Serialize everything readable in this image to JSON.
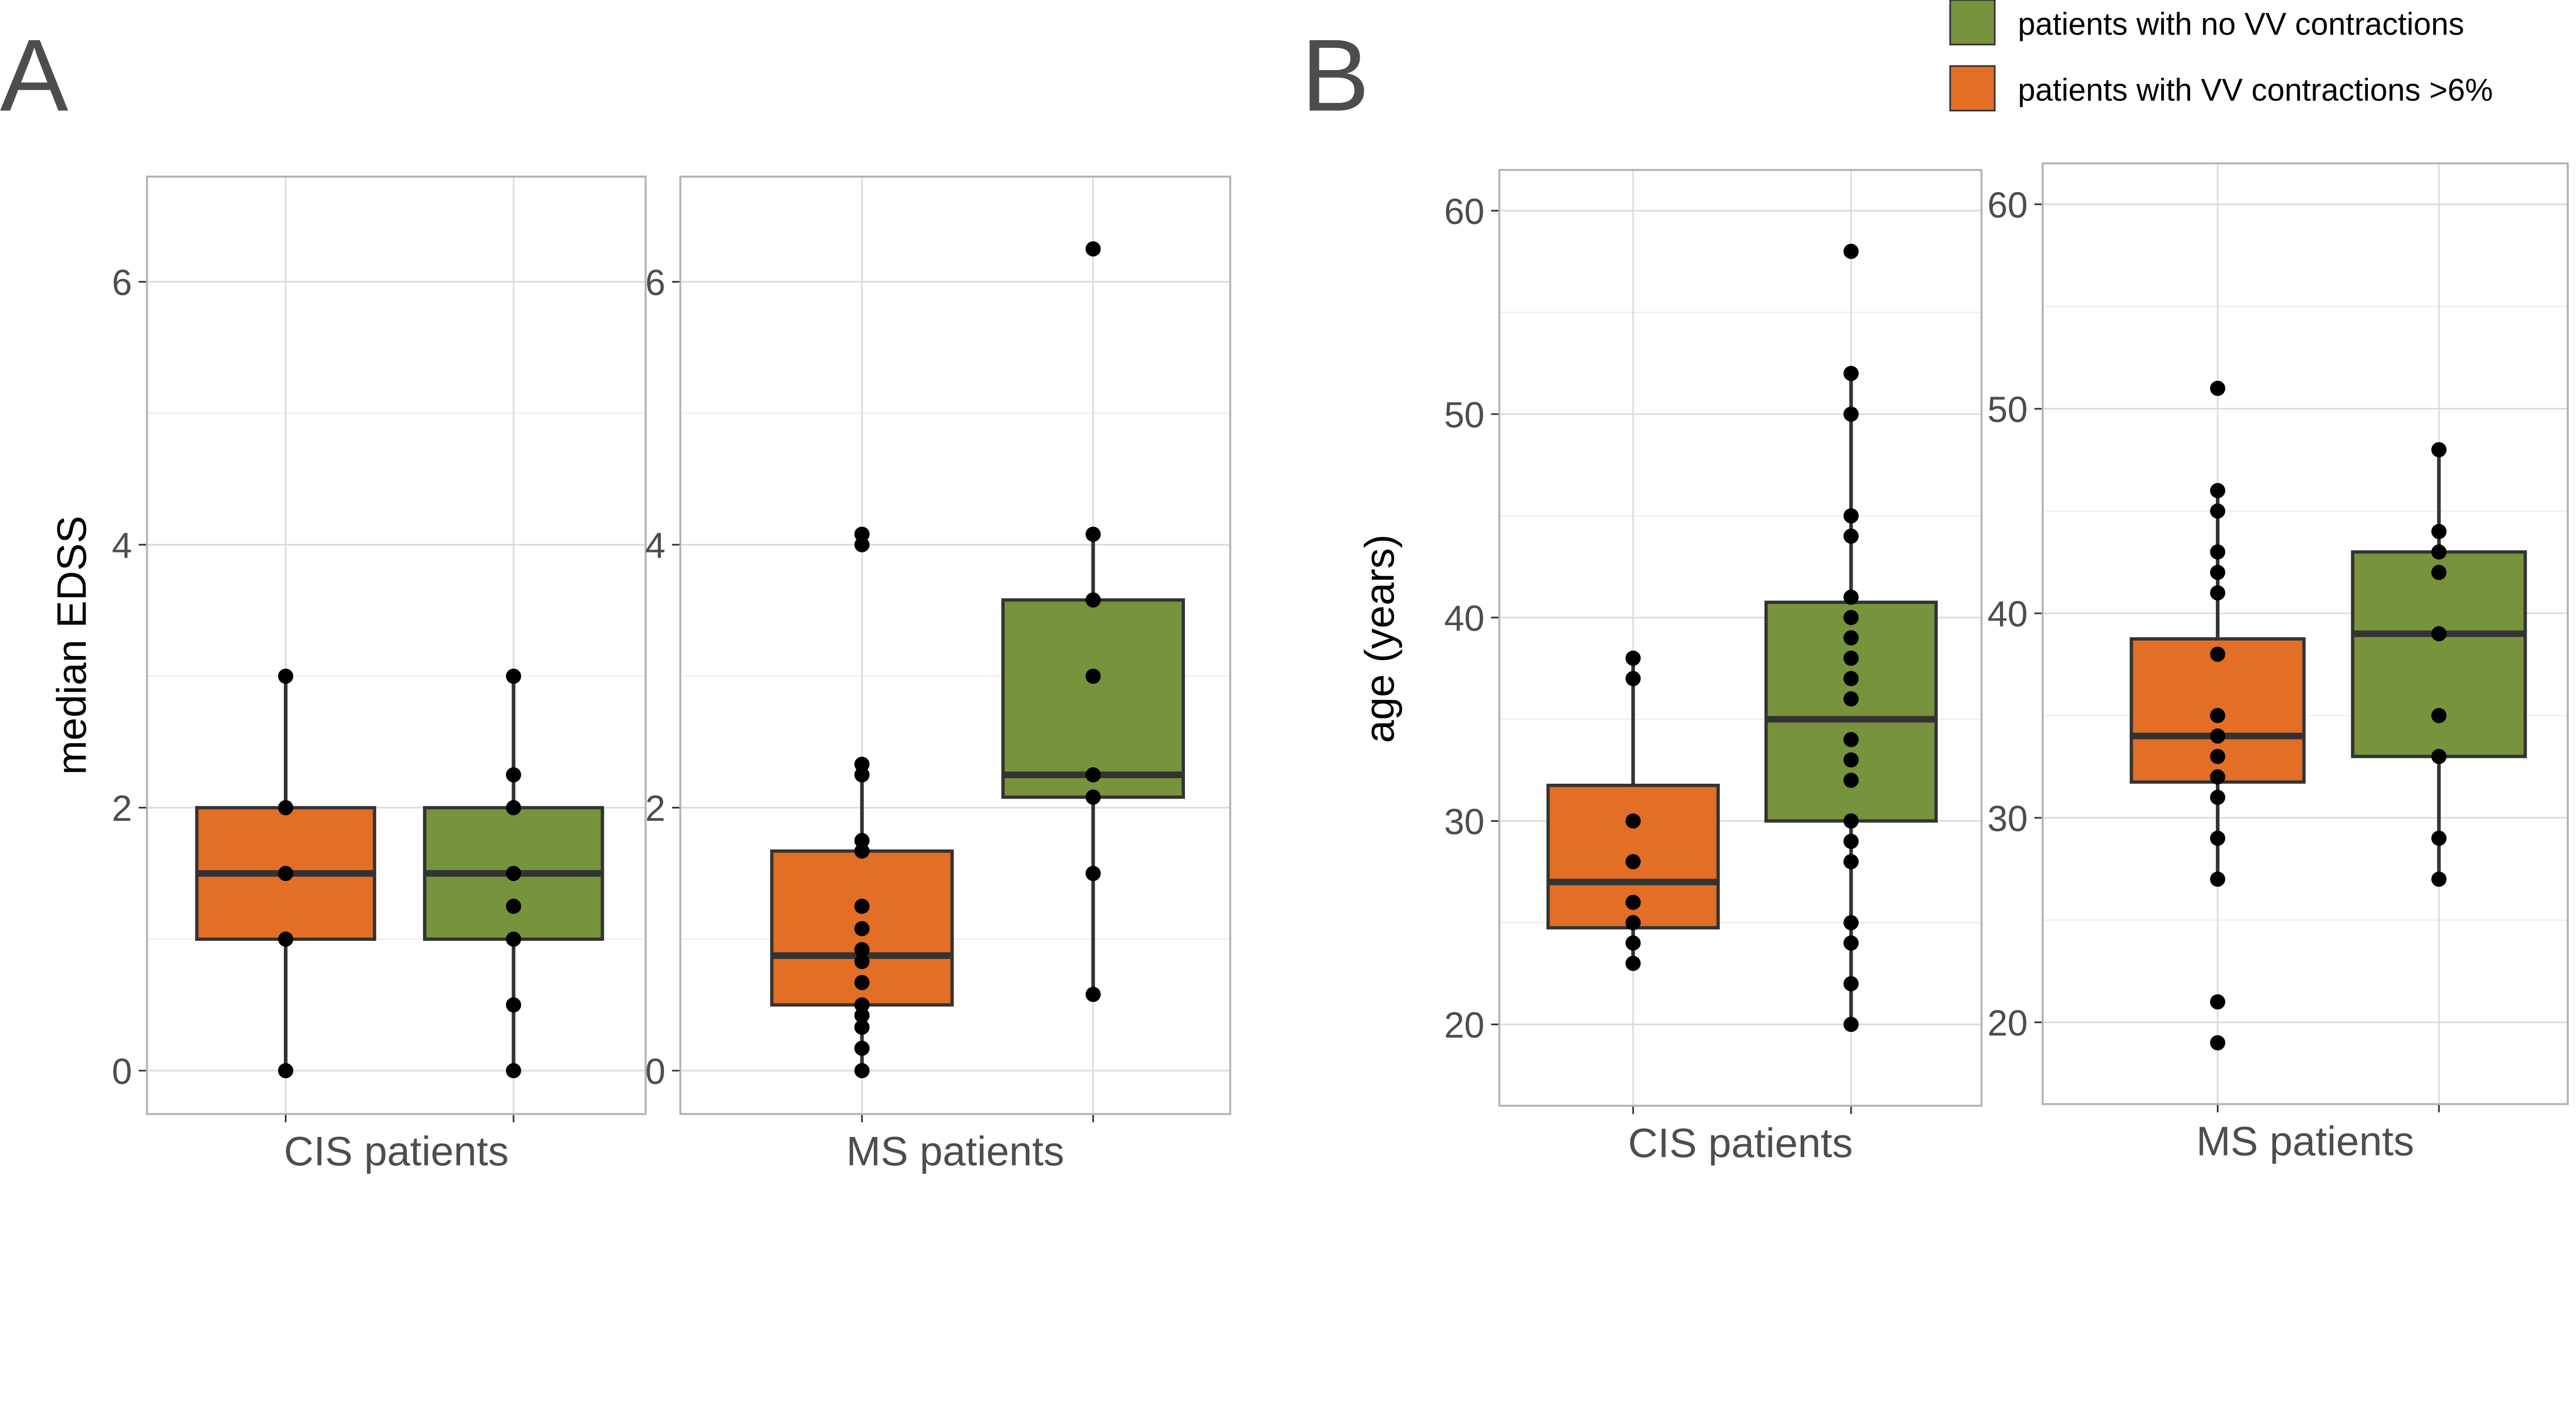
{
  "colors": {
    "orange": "#e36e26",
    "green": "#77933c",
    "outline": "#333333",
    "point": "#000000"
  },
  "legend": {
    "placement": "top-right",
    "items": [
      {
        "label": "patients with no VV contractions",
        "color": "#77933c"
      },
      {
        "label": "patients with VV contractions >6%",
        "color": "#e36e26"
      }
    ]
  },
  "chart_data": [
    {
      "type": "box",
      "panel_label": "A",
      "ylabel": "median EDSS",
      "xlabel": "CIS patients",
      "ylim": [
        -0.33,
        6.8
      ],
      "yticks": [
        0,
        2,
        4,
        6
      ],
      "grid": true,
      "series": [
        {
          "group": "patients with VV contractions >6%",
          "color": "#e36e26",
          "box": {
            "lower_whisker": 0,
            "q1": 1,
            "median": 1.5,
            "q3": 2,
            "upper_whisker": 3
          },
          "points": [
            0,
            1,
            1.5,
            2,
            3
          ]
        },
        {
          "group": "patients with no VV contractions",
          "color": "#77933c",
          "box": {
            "lower_whisker": 0,
            "q1": 1,
            "median": 1.5,
            "q3": 2,
            "upper_whisker": 3
          },
          "points": [
            0,
            0.5,
            1,
            1.25,
            1.5,
            2,
            2.25,
            3
          ]
        }
      ]
    },
    {
      "type": "box",
      "panel_label": "",
      "ylabel": "",
      "xlabel": "MS patients",
      "ylim": [
        -0.33,
        6.8
      ],
      "yticks": [
        0,
        2,
        4,
        6
      ],
      "grid": true,
      "series": [
        {
          "group": "patients with VV contractions >6%",
          "color": "#e36e26",
          "box": {
            "lower_whisker": 0,
            "q1": 0.5,
            "median": 0.875,
            "q3": 1.67,
            "upper_whisker": 2.33
          },
          "points": [
            0,
            0.17,
            0.33,
            0.42,
            0.5,
            0.67,
            0.83,
            0.92,
            1.08,
            1.25,
            1.67,
            1.75,
            2.25,
            2.33,
            4.0,
            4.08
          ]
        },
        {
          "group": "patients with no VV contractions",
          "color": "#77933c",
          "box": {
            "lower_whisker": 0.58,
            "q1": 2.08,
            "median": 2.25,
            "q3": 3.58,
            "upper_whisker": 4.08
          },
          "points": [
            0.58,
            1.5,
            2.08,
            2.25,
            3.0,
            3.58,
            4.08,
            6.25
          ]
        }
      ]
    },
    {
      "type": "box",
      "panel_label": "B",
      "ylabel": "age (years)",
      "xlabel": "CIS patients",
      "ylim": [
        16,
        62
      ],
      "yticks": [
        20,
        30,
        40,
        50,
        60
      ],
      "grid": true,
      "series": [
        {
          "group": "patients with VV contractions >6%",
          "color": "#e36e26",
          "box": {
            "lower_whisker": 23,
            "q1": 24.75,
            "median": 27,
            "q3": 31.75,
            "upper_whisker": 38
          },
          "points": [
            23,
            24,
            25,
            26,
            28,
            30,
            37,
            38
          ]
        },
        {
          "group": "patients with no VV contractions",
          "color": "#77933c",
          "box": {
            "lower_whisker": 20,
            "q1": 30,
            "median": 35,
            "q3": 40.75,
            "upper_whisker": 52
          },
          "points": [
            20,
            22,
            24,
            25,
            28,
            29,
            30,
            32,
            33,
            34,
            36,
            37,
            38,
            39,
            40,
            41,
            44,
            45,
            50,
            52,
            58
          ]
        }
      ]
    },
    {
      "type": "box",
      "panel_label": "",
      "ylabel": "",
      "xlabel": "MS patients",
      "ylim": [
        16,
        62
      ],
      "yticks": [
        20,
        30,
        40,
        50,
        60
      ],
      "grid": true,
      "series": [
        {
          "group": "patients with VV contractions >6%",
          "color": "#e36e26",
          "box": {
            "lower_whisker": 27,
            "q1": 31.75,
            "median": 34,
            "q3": 38.75,
            "upper_whisker": 46
          },
          "points": [
            19,
            21,
            27,
            29,
            31,
            32,
            33,
            34,
            35,
            38,
            41,
            42,
            43,
            45,
            46,
            51
          ]
        },
        {
          "group": "patients with no VV contractions",
          "color": "#77933c",
          "box": {
            "lower_whisker": 27,
            "q1": 33,
            "median": 39,
            "q3": 43,
            "upper_whisker": 48
          },
          "points": [
            27,
            29,
            33,
            35,
            39,
            42,
            43,
            44,
            48
          ]
        }
      ]
    }
  ]
}
